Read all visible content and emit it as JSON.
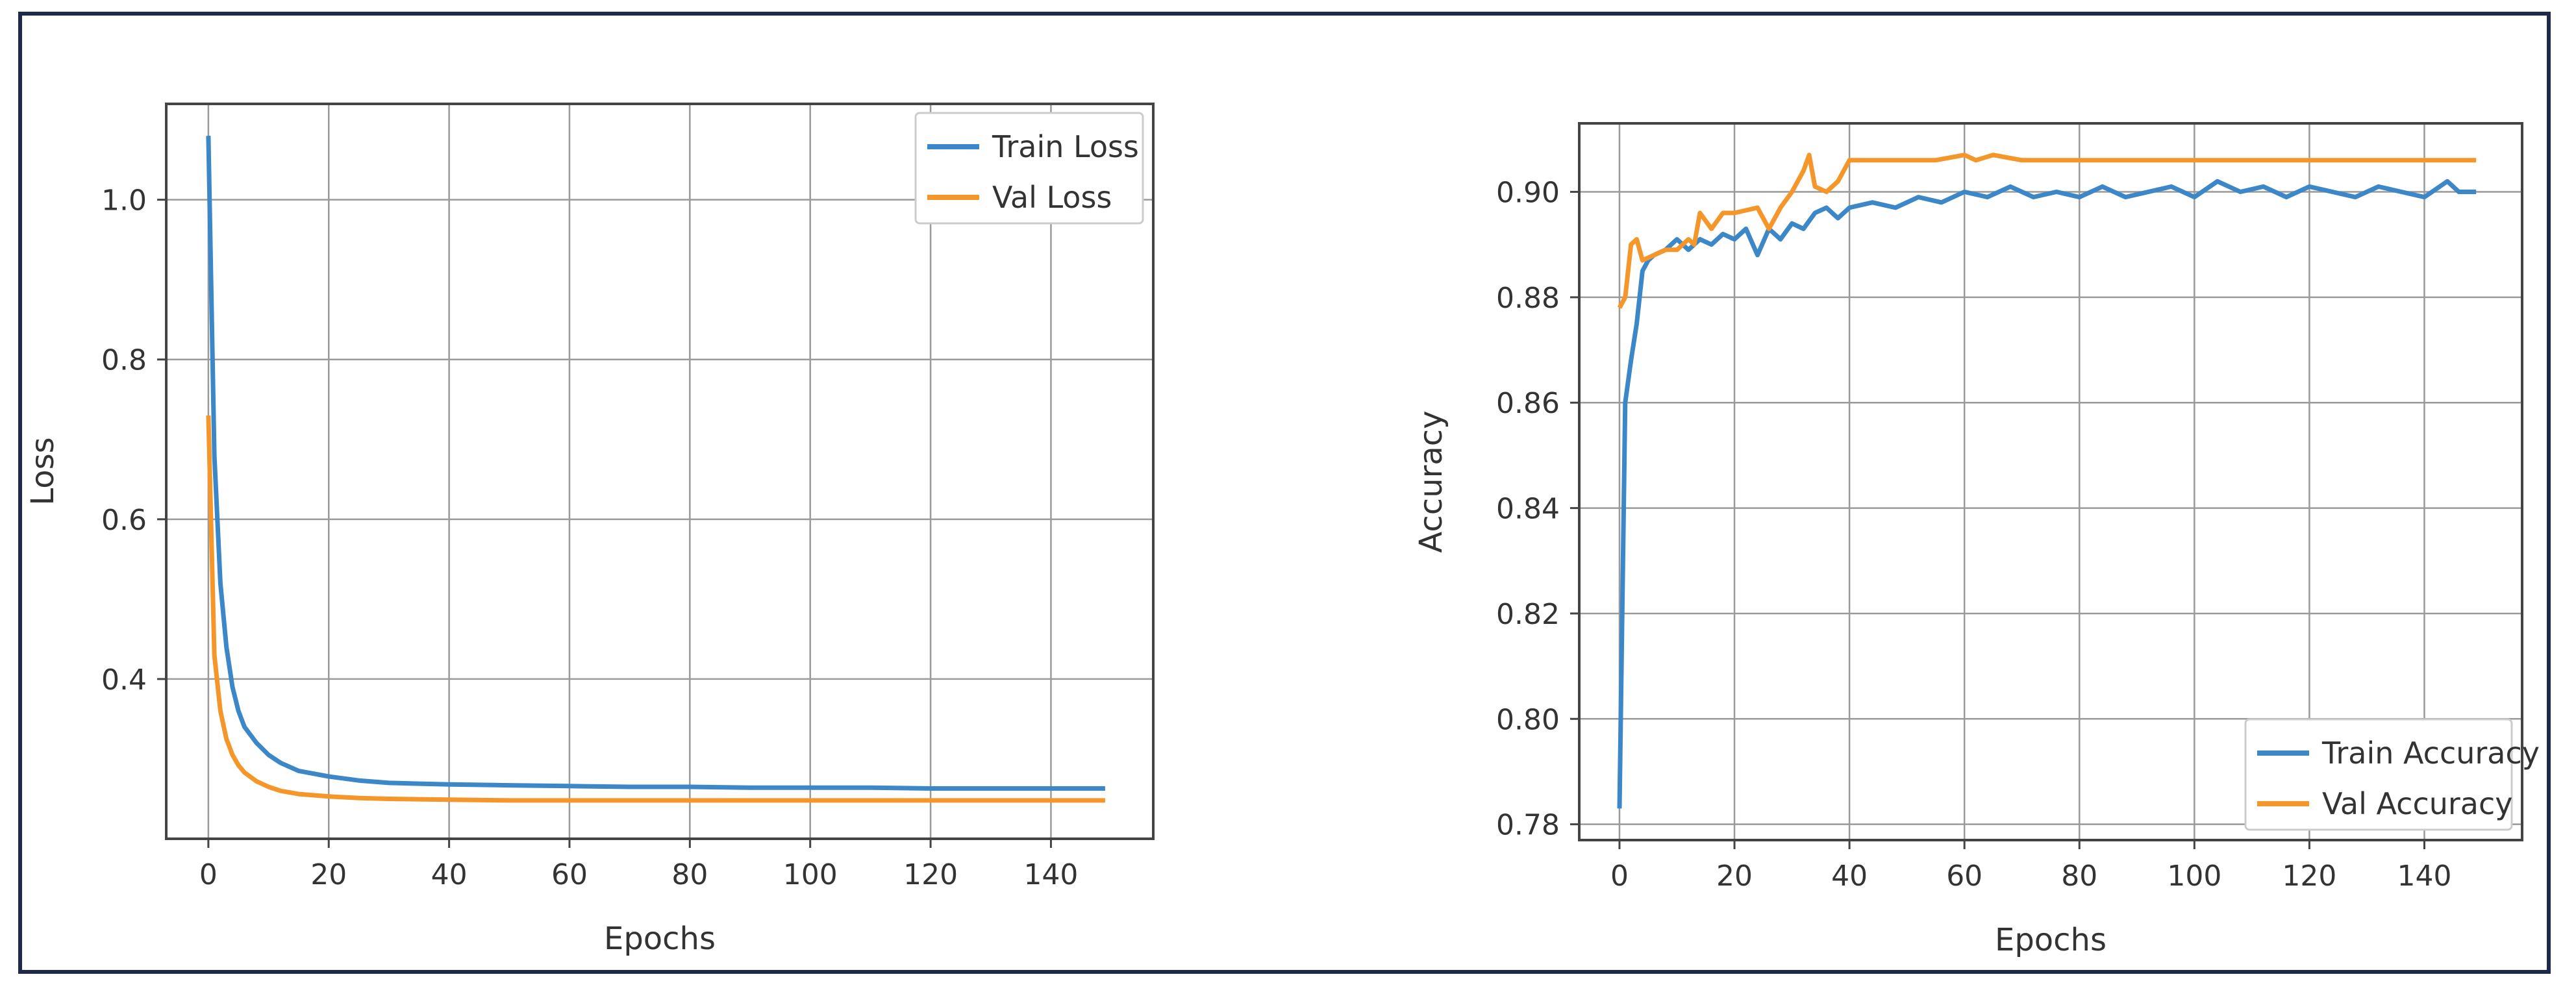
{
  "chart_data": [
    {
      "type": "line",
      "xlabel": "Epochs",
      "ylabel": "Loss",
      "xlim": [
        -7,
        157
      ],
      "ylim": [
        0.2,
        1.12
      ],
      "xticks": [
        0,
        20,
        40,
        60,
        80,
        100,
        120,
        140
      ],
      "yticks": [
        0.4,
        0.6,
        0.8,
        1.0
      ],
      "xtick_labels": [
        "0",
        "20",
        "40",
        "60",
        "80",
        "100",
        "120",
        "140"
      ],
      "ytick_labels": [
        "0.4",
        "0.6",
        "0.8",
        "1.0"
      ],
      "grid": true,
      "legend_position": "top-right",
      "legend_labels": [
        "Train Loss",
        "Val Loss"
      ],
      "series": [
        {
          "name": "Train Loss",
          "color": "#3b87c8",
          "x": [
            0,
            1,
            2,
            3,
            4,
            5,
            6,
            8,
            10,
            12,
            15,
            20,
            25,
            30,
            40,
            50,
            60,
            70,
            80,
            90,
            100,
            110,
            120,
            130,
            140,
            149
          ],
          "y": [
            1.08,
            0.68,
            0.52,
            0.44,
            0.39,
            0.36,
            0.34,
            0.32,
            0.305,
            0.295,
            0.285,
            0.278,
            0.273,
            0.27,
            0.268,
            0.267,
            0.266,
            0.265,
            0.265,
            0.264,
            0.264,
            0.264,
            0.263,
            0.263,
            0.263,
            0.263
          ]
        },
        {
          "name": "Val Loss",
          "color": "#f5962a",
          "x": [
            0,
            1,
            2,
            3,
            4,
            5,
            6,
            8,
            10,
            12,
            15,
            20,
            25,
            30,
            40,
            50,
            60,
            70,
            80,
            90,
            100,
            110,
            120,
            130,
            140,
            149
          ],
          "y": [
            0.73,
            0.43,
            0.36,
            0.325,
            0.305,
            0.292,
            0.283,
            0.272,
            0.265,
            0.26,
            0.256,
            0.253,
            0.251,
            0.25,
            0.249,
            0.248,
            0.248,
            0.248,
            0.248,
            0.248,
            0.248,
            0.248,
            0.248,
            0.248,
            0.248,
            0.248
          ]
        }
      ]
    },
    {
      "type": "line",
      "xlabel": "Epochs",
      "ylabel": "Accuracy",
      "xlim": [
        -7,
        157
      ],
      "ylim": [
        0.777,
        0.913
      ],
      "xticks": [
        0,
        20,
        40,
        60,
        80,
        100,
        120,
        140
      ],
      "yticks": [
        0.78,
        0.8,
        0.82,
        0.84,
        0.86,
        0.88,
        0.9
      ],
      "xtick_labels": [
        "0",
        "20",
        "40",
        "60",
        "80",
        "100",
        "120",
        "140"
      ],
      "ytick_labels": [
        "0.78",
        "0.80",
        "0.82",
        "0.84",
        "0.86",
        "0.88",
        "0.90"
      ],
      "grid": true,
      "legend_position": "bottom-right",
      "legend_labels": [
        "Train Accuracy",
        "Val Accuracy"
      ],
      "series": [
        {
          "name": "Train Accuracy",
          "color": "#3b87c8",
          "x": [
            0,
            1,
            2,
            3,
            4,
            5,
            6,
            8,
            10,
            12,
            14,
            16,
            18,
            20,
            22,
            24,
            26,
            28,
            30,
            32,
            34,
            36,
            38,
            40,
            44,
            48,
            52,
            56,
            60,
            64,
            68,
            72,
            76,
            80,
            84,
            88,
            92,
            96,
            100,
            104,
            108,
            112,
            116,
            120,
            124,
            128,
            132,
            136,
            140,
            144,
            146,
            149
          ],
          "y": [
            0.783,
            0.86,
            0.868,
            0.875,
            0.885,
            0.887,
            0.888,
            0.889,
            0.891,
            0.889,
            0.891,
            0.89,
            0.892,
            0.891,
            0.893,
            0.888,
            0.893,
            0.891,
            0.894,
            0.893,
            0.896,
            0.897,
            0.895,
            0.897,
            0.898,
            0.897,
            0.899,
            0.898,
            0.9,
            0.899,
            0.901,
            0.899,
            0.9,
            0.899,
            0.901,
            0.899,
            0.9,
            0.901,
            0.899,
            0.902,
            0.9,
            0.901,
            0.899,
            0.901,
            0.9,
            0.899,
            0.901,
            0.9,
            0.899,
            0.902,
            0.9,
            0.9
          ]
        },
        {
          "name": "Val Accuracy",
          "color": "#f5962a",
          "x": [
            0,
            1,
            2,
            3,
            4,
            6,
            8,
            10,
            12,
            13,
            14,
            16,
            18,
            20,
            24,
            26,
            28,
            30,
            32,
            33,
            34,
            36,
            38,
            40,
            50,
            55,
            60,
            62,
            65,
            70,
            80,
            90,
            100,
            120,
            140,
            149
          ],
          "y": [
            0.878,
            0.88,
            0.89,
            0.891,
            0.887,
            0.888,
            0.889,
            0.889,
            0.891,
            0.89,
            0.896,
            0.893,
            0.896,
            0.896,
            0.897,
            0.893,
            0.897,
            0.9,
            0.904,
            0.907,
            0.901,
            0.9,
            0.902,
            0.906,
            0.906,
            0.906,
            0.907,
            0.906,
            0.907,
            0.906,
            0.906,
            0.906,
            0.906,
            0.906,
            0.906,
            0.906
          ]
        }
      ]
    }
  ]
}
